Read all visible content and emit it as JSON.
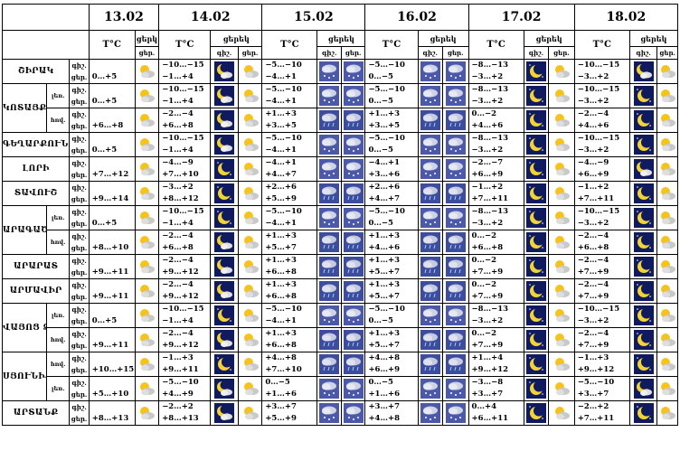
{
  "header": {
    "dates": [
      "13.02",
      "14.02",
      "15.02",
      "16.02",
      "17.02",
      "18.02"
    ],
    "temp_label": "T°C",
    "day_label": "ցերեկ",
    "night_label": "գիշ.",
    "day_short": "ցեր.",
    "day_label_13": "ցերկ"
  },
  "dn_labels": {
    "night": "գիշ.",
    "day": "ցեր."
  },
  "regions": [
    {
      "name": "ՇԻՐԱԿ",
      "subs": [
        {
          "label": "",
          "t13": [
            "",
            "0…+5"
          ],
          "days": [
            {
              "t": [
                "−10…−15",
                "−1…+4"
              ],
              "n": "moon-cloud",
              "d": "sun-cloud"
            },
            {
              "t": [
                "−5…−10",
                "−4…+1"
              ],
              "n": "snow",
              "d": "snow"
            },
            {
              "t": [
                "−5…−10",
                "0…−5"
              ],
              "n": "snow",
              "d": "snow"
            },
            {
              "t": [
                "−8…−13",
                "−3…+2"
              ],
              "n": "moon",
              "d": "sun-cloud"
            },
            {
              "t": [
                "−10…−15",
                "−3…+2"
              ],
              "n": "moon-cloud",
              "d": "sun-cloud"
            }
          ]
        }
      ]
    },
    {
      "name": "ԿՈՏԱՅՔ",
      "subs": [
        {
          "label": "լեռ.",
          "t13": [
            "",
            "0…+5"
          ],
          "days": [
            {
              "t": [
                "−10…−15",
                "−1…+4"
              ],
              "n": "moon-cloud",
              "d": "sun-cloud"
            },
            {
              "t": [
                "−5…−10",
                "−4…+1"
              ],
              "n": "snow",
              "d": "snow"
            },
            {
              "t": [
                "−5…−10",
                "0…−5"
              ],
              "n": "snow",
              "d": "snow"
            },
            {
              "t": [
                "−8…−13",
                "−3…+2"
              ],
              "n": "moon",
              "d": "sun-cloud"
            },
            {
              "t": [
                "−10…−15",
                "−3…+2"
              ],
              "n": "moon",
              "d": "sun-cloud"
            }
          ]
        },
        {
          "label": "հով.",
          "t13": [
            "",
            "+6…+8"
          ],
          "days": [
            {
              "t": [
                "−2…−4",
                "+6…+8"
              ],
              "n": "moon-cloud",
              "d": "sun-cloud"
            },
            {
              "t": [
                "+1…+3",
                "+3…+5"
              ],
              "n": "rain",
              "d": "rain"
            },
            {
              "t": [
                "+1…+3",
                "+3…+5"
              ],
              "n": "rain",
              "d": "rain"
            },
            {
              "t": [
                "0…−2",
                "+4…+6"
              ],
              "n": "moon",
              "d": "sun-cloud"
            },
            {
              "t": [
                "−2…−4",
                "+4…+6"
              ],
              "n": "moon",
              "d": "sun-cloud"
            }
          ]
        }
      ]
    },
    {
      "name": "ԳԵՂԱՐՔՈՒՆԻՔ",
      "subs": [
        {
          "label": "",
          "t13": [
            "",
            "0…+5"
          ],
          "days": [
            {
              "t": [
                "−10…−15",
                "−1…+4"
              ],
              "n": "moon-cloud",
              "d": "sun-cloud"
            },
            {
              "t": [
                "−5…−10",
                "−4…+1"
              ],
              "n": "snow",
              "d": "snow"
            },
            {
              "t": [
                "−5…−10",
                "0…−5"
              ],
              "n": "snow",
              "d": "snow"
            },
            {
              "t": [
                "−8…−13",
                "−3…+2"
              ],
              "n": "moon",
              "d": "sun-cloud"
            },
            {
              "t": [
                "−10…−15",
                "−3…+2"
              ],
              "n": "moon",
              "d": "sun-cloud"
            }
          ]
        }
      ]
    },
    {
      "name": "ԼՈՐԻ",
      "subs": [
        {
          "label": "",
          "t13": [
            "",
            "+7…+12"
          ],
          "days": [
            {
              "t": [
                "−4…−9",
                "+7…+10"
              ],
              "n": "moon",
              "d": "sun-cloud"
            },
            {
              "t": [
                "−4…+1",
                "+4…+7"
              ],
              "n": "snow",
              "d": "snow"
            },
            {
              "t": [
                "−4…+1",
                "+3…+6"
              ],
              "n": "snow",
              "d": "snow"
            },
            {
              "t": [
                "−2…−7",
                "+6…+9"
              ],
              "n": "moon",
              "d": "sun-cloud"
            },
            {
              "t": [
                "−4…−9",
                "+6…+9"
              ],
              "n": "moon-cloud",
              "d": "sun-cloud"
            }
          ]
        }
      ]
    },
    {
      "name": "ՏԱՎՈՒՇ",
      "subs": [
        {
          "label": "",
          "t13": [
            "",
            "+9…+14"
          ],
          "days": [
            {
              "t": [
                "−3…+2",
                "+8…+12"
              ],
              "n": "moon",
              "d": "sun-cloud"
            },
            {
              "t": [
                "+2…+6",
                "+5…+9"
              ],
              "n": "rain",
              "d": "rain"
            },
            {
              "t": [
                "+2…+6",
                "+4…+7"
              ],
              "n": "rain",
              "d": "rain"
            },
            {
              "t": [
                "−1…+2",
                "+7…+11"
              ],
              "n": "moon",
              "d": "sun-cloud"
            },
            {
              "t": [
                "−1…+2",
                "+7…+11"
              ],
              "n": "moon",
              "d": "sun-cloud"
            }
          ]
        }
      ]
    },
    {
      "name": "ԱՐԱԳԱԾՈՏՆ",
      "subs": [
        {
          "label": "լեռ.",
          "t13": [
            "",
            "0…+5"
          ],
          "days": [
            {
              "t": [
                "−10…−15",
                "−1…+4"
              ],
              "n": "moon",
              "d": "sun-cloud"
            },
            {
              "t": [
                "−5…−10",
                "−4…+1"
              ],
              "n": "snow",
              "d": "snow"
            },
            {
              "t": [
                "−5…−10",
                "0…−5"
              ],
              "n": "snow",
              "d": "snow"
            },
            {
              "t": [
                "−8…−13",
                "−3…+2"
              ],
              "n": "moon",
              "d": "sun-cloud"
            },
            {
              "t": [
                "−10…−15",
                "−3…+2"
              ],
              "n": "moon",
              "d": "sun-cloud"
            }
          ]
        },
        {
          "label": "հով.",
          "t13": [
            "",
            "+8…+10"
          ],
          "days": [
            {
              "t": [
                "−2…−4",
                "+6…+8"
              ],
              "n": "moon-cloud",
              "d": "sun-cloud"
            },
            {
              "t": [
                "+1…+3",
                "+5…+7"
              ],
              "n": "rain",
              "d": "rain"
            },
            {
              "t": [
                "+1…+3",
                "+4…+6"
              ],
              "n": "rain",
              "d": "rain"
            },
            {
              "t": [
                "0…−2",
                "+6…+8"
              ],
              "n": "moon",
              "d": "sun-cloud"
            },
            {
              "t": [
                "−2…−4",
                "+6…+8"
              ],
              "n": "moon",
              "d": "sun-cloud"
            }
          ]
        }
      ]
    },
    {
      "name": "ԱՐԱՐԱՏ",
      "subs": [
        {
          "label": "",
          "t13": [
            "",
            "+9…+11"
          ],
          "days": [
            {
              "t": [
                "−2…−4",
                "+9…+12"
              ],
              "n": "moon-cloud",
              "d": "sun-cloud"
            },
            {
              "t": [
                "+1…+3",
                "+6…+8"
              ],
              "n": "rain",
              "d": "rain"
            },
            {
              "t": [
                "+1…+3",
                "+5…+7"
              ],
              "n": "rain",
              "d": "rain"
            },
            {
              "t": [
                "0…−2",
                "+7…+9"
              ],
              "n": "moon",
              "d": "sun-cloud"
            },
            {
              "t": [
                "−2…−4",
                "+7…+9"
              ],
              "n": "moon",
              "d": "sun-cloud"
            }
          ]
        }
      ]
    },
    {
      "name": "ԱՐՄԱՎԻՐ",
      "subs": [
        {
          "label": "",
          "t13": [
            "",
            "+9…+11"
          ],
          "days": [
            {
              "t": [
                "−2…−4",
                "+9…+12"
              ],
              "n": "moon-cloud",
              "d": "sun-cloud"
            },
            {
              "t": [
                "+1…+3",
                "+6…+8"
              ],
              "n": "rain",
              "d": "rain"
            },
            {
              "t": [
                "+1…+3",
                "+5…+7"
              ],
              "n": "rain",
              "d": "rain"
            },
            {
              "t": [
                "0…−2",
                "+7…+9"
              ],
              "n": "moon",
              "d": "sun-cloud"
            },
            {
              "t": [
                "−2…−4",
                "+7…+9"
              ],
              "n": "moon",
              "d": "sun-cloud"
            }
          ]
        }
      ]
    },
    {
      "name": "ՎԱՅՈՑ ՁՈՐ",
      "subs": [
        {
          "label": "լեռ.",
          "t13": [
            "",
            "0…+5"
          ],
          "days": [
            {
              "t": [
                "−10…−15",
                "−1…+4"
              ],
              "n": "moon",
              "d": "sun-cloud"
            },
            {
              "t": [
                "−5…−10",
                "−4…+1"
              ],
              "n": "snow",
              "d": "snow"
            },
            {
              "t": [
                "−5…−10",
                "0…−5"
              ],
              "n": "snow",
              "d": "snow"
            },
            {
              "t": [
                "−8…−13",
                "−3…+2"
              ],
              "n": "moon",
              "d": "sun-cloud"
            },
            {
              "t": [
                "−10…−15",
                "−3…+2"
              ],
              "n": "moon",
              "d": "sun-cloud"
            }
          ]
        },
        {
          "label": "հով.",
          "t13": [
            "",
            "+9…+11"
          ],
          "days": [
            {
              "t": [
                "−2…−4",
                "+9…+12"
              ],
              "n": "moon-cloud",
              "d": "sun-cloud"
            },
            {
              "t": [
                "+1…+3",
                "+6…+8"
              ],
              "n": "rain",
              "d": "rain"
            },
            {
              "t": [
                "+1…+3",
                "+5…+7"
              ],
              "n": "rain",
              "d": "rain"
            },
            {
              "t": [
                "0…−2",
                "+7…+9"
              ],
              "n": "moon",
              "d": "sun-cloud"
            },
            {
              "t": [
                "−2…−4",
                "+7…+9"
              ],
              "n": "moon",
              "d": "sun-cloud"
            }
          ]
        }
      ]
    },
    {
      "name": "ՍՅՈՒՆԻՔ",
      "subs": [
        {
          "label": "հով.",
          "t13": [
            "",
            "+10…+15"
          ],
          "days": [
            {
              "t": [
                "−1…+3",
                "+9…+11"
              ],
              "n": "moon",
              "d": "sun-cloud"
            },
            {
              "t": [
                "+4…+8",
                "+7…+10"
              ],
              "n": "rain",
              "d": "rain"
            },
            {
              "t": [
                "+4…+8",
                "+6…+9"
              ],
              "n": "rain",
              "d": "rain"
            },
            {
              "t": [
                "+1…+4",
                "+9…+12"
              ],
              "n": "moon",
              "d": "sun-cloud"
            },
            {
              "t": [
                "−1…+3",
                "+9…+12"
              ],
              "n": "moon",
              "d": "sun-cloud"
            }
          ]
        },
        {
          "label": "լեռ.",
          "t13": [
            "",
            "+5…+10"
          ],
          "days": [
            {
              "t": [
                "−5…−10",
                "+4…+9"
              ],
              "n": "moon-cloud",
              "d": "sun-cloud"
            },
            {
              "t": [
                "0…−5",
                "+1…+6"
              ],
              "n": "snow",
              "d": "snow"
            },
            {
              "t": [
                "0…−5",
                "+1…+6"
              ],
              "n": "snow",
              "d": "snow"
            },
            {
              "t": [
                "−3…−8",
                "+3…+7"
              ],
              "n": "moon",
              "d": "sun-cloud"
            },
            {
              "t": [
                "−5…−10",
                "+3…+7"
              ],
              "n": "moon-cloud",
              "d": "sun-cloud"
            }
          ]
        }
      ]
    },
    {
      "name": "ԱՐՏԱՆՔ",
      "subs": [
        {
          "label": "",
          "t13": [
            "",
            "+8…+13"
          ],
          "days": [
            {
              "t": [
                "−2…+2",
                "+8…+13"
              ],
              "n": "moon-cloud",
              "d": "sun-cloud"
            },
            {
              "t": [
                "+3…+7",
                "+5…+9"
              ],
              "n": "snow",
              "d": "snow"
            },
            {
              "t": [
                "+3…+7",
                "+4…+8"
              ],
              "n": "snow",
              "d": "snow"
            },
            {
              "t": [
                "0…+4",
                "+6…+11"
              ],
              "n": "moon",
              "d": "sun-cloud"
            },
            {
              "t": [
                "−2…+2",
                "+7…+11"
              ],
              "n": "moon",
              "d": "sun-cloud"
            }
          ]
        }
      ]
    }
  ],
  "colors": {
    "night_bg": "#101a5e",
    "moon": "#f2d335",
    "sun": "#f7c21a",
    "cloud": "#c9c9c9",
    "snow_bg": "#4b59a8",
    "rain_bg": "#3d4c9c"
  }
}
